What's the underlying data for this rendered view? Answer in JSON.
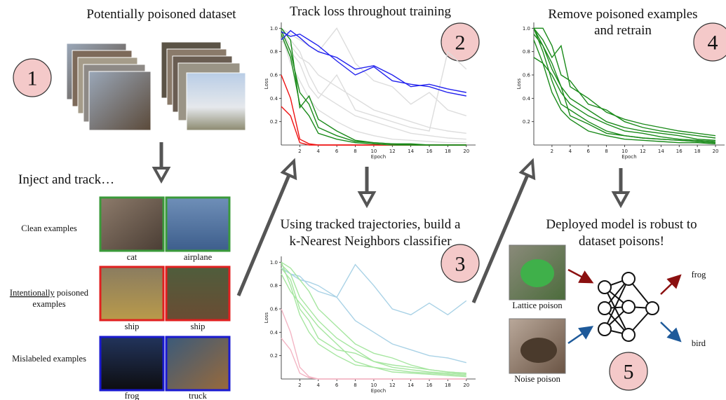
{
  "badges": [
    "1",
    "2",
    "3",
    "4",
    "5"
  ],
  "dataset": {
    "title": "Potentially poisoned dataset"
  },
  "inject": {
    "title": "Inject and track…",
    "clean": {
      "label": "Clean examples",
      "captions": [
        "cat",
        "airplane"
      ]
    },
    "poisoned": {
      "label_emphasis": "Intentionally",
      "label_rest": " poisoned",
      "label_line2": "examples",
      "captions": [
        "ship",
        "ship"
      ]
    },
    "mislabeled": {
      "label": "Mislabeled examples",
      "captions": [
        "frog",
        "truck"
      ]
    }
  },
  "track": {
    "title": "Track loss throughout training"
  },
  "knn": {
    "title_lines": [
      "Using tracked trajectories, build a",
      "k-Nearest Neighbors classifier"
    ]
  },
  "retrain": {
    "title_lines": [
      "Remove poisoned examples",
      "and retrain"
    ]
  },
  "deploy": {
    "title_lines": [
      "Deployed model is robust to",
      "dataset poisons!"
    ],
    "inputs": [
      "Lattice poison",
      "Noise poison"
    ],
    "outputs": [
      "frog",
      "bird"
    ]
  },
  "plots": {
    "training": {
      "ylabel": "Loss",
      "xlabel": "Epoch",
      "xlim": [
        0,
        21
      ],
      "ylim": [
        0,
        1.05
      ],
      "xticks": [
        2,
        4,
        6,
        8,
        10,
        12,
        14,
        16,
        18,
        20
      ],
      "yticks": [
        0.2,
        0.4,
        0.6,
        0.8,
        {
          "value": 1,
          "label": "1.0"
        }
      ],
      "x": [
        0,
        1,
        2,
        3,
        4,
        6,
        8,
        10,
        12,
        14,
        16,
        18,
        20
      ],
      "series": [
        {
          "color": "#dddddd",
          "values": [
            1.0,
            0.95,
            0.9,
            0.85,
            0.8,
            1.0,
            0.7,
            0.55,
            0.5,
            0.35,
            0.45,
            0.3,
            0.25
          ]
        },
        {
          "color": "#dddddd",
          "values": [
            0.98,
            0.85,
            0.75,
            0.7,
            0.6,
            0.5,
            0.4,
            0.3,
            0.25,
            0.2,
            0.15,
            0.12,
            0.1
          ]
        },
        {
          "color": "#dddddd",
          "values": [
            1.0,
            0.9,
            0.8,
            0.6,
            0.45,
            0.35,
            0.25,
            0.2,
            0.15,
            0.1,
            0.08,
            0.06,
            0.05
          ]
        },
        {
          "color": "#dddddd",
          "values": [
            0.9,
            0.8,
            0.7,
            0.5,
            0.4,
            0.6,
            0.3,
            0.25,
            0.2,
            0.15,
            0.12,
            0.8,
            0.65
          ]
        },
        {
          "color": "#dddddd",
          "values": [
            0.95,
            0.7,
            0.55,
            0.4,
            0.3,
            0.2,
            0.12,
            0.08,
            0.05,
            0.04,
            0.03,
            0.02,
            0.02
          ]
        },
        {
          "color": "#ee1111",
          "values": [
            0.6,
            0.4,
            0.05,
            0.01,
            0.0,
            0.0,
            0.0,
            0.0,
            0.0,
            0.0,
            0.0,
            0.0,
            0.0
          ]
        },
        {
          "color": "#ee1111",
          "values": [
            0.33,
            0.25,
            0.02,
            0.0,
            0.0,
            0.0,
            0.0,
            0.0,
            0.0,
            0.0,
            0.0,
            0.0,
            0.0
          ]
        },
        {
          "color": "#1a8a1a",
          "values": [
            1.0,
            0.9,
            0.32,
            0.42,
            0.22,
            0.12,
            0.04,
            0.02,
            0.01,
            0.01,
            0.0,
            0.0,
            0.0
          ]
        },
        {
          "color": "#1a8a1a",
          "values": [
            0.98,
            0.8,
            0.45,
            0.35,
            0.15,
            0.08,
            0.03,
            0.02,
            0.01,
            0.0,
            0.0,
            0.0,
            0.0
          ]
        },
        {
          "color": "#1a8a1a",
          "values": [
            0.95,
            0.75,
            0.35,
            0.25,
            0.1,
            0.05,
            0.02,
            0.01,
            0.0,
            0.0,
            0.0,
            0.0,
            0.0
          ]
        },
        {
          "color": "#2222ee",
          "values": [
            0.9,
            0.98,
            0.92,
            0.85,
            0.8,
            0.75,
            0.65,
            0.68,
            0.6,
            0.5,
            0.52,
            0.48,
            0.45
          ]
        },
        {
          "color": "#2222ee",
          "values": [
            0.97,
            0.93,
            0.95,
            0.9,
            0.85,
            0.72,
            0.6,
            0.67,
            0.55,
            0.52,
            0.5,
            0.45,
            0.42
          ]
        }
      ]
    },
    "knn": {
      "ylabel": "Loss",
      "xlabel": "Epoch",
      "xlim": [
        0,
        21
      ],
      "ylim": [
        0,
        1.05
      ],
      "xticks": [
        2,
        4,
        6,
        8,
        10,
        12,
        14,
        16,
        18,
        20
      ],
      "yticks": [
        0.2,
        0.4,
        0.6,
        0.8,
        {
          "value": 1,
          "label": "1.0"
        }
      ],
      "x": [
        0,
        1,
        2,
        3,
        4,
        6,
        8,
        10,
        12,
        14,
        16,
        18,
        20
      ],
      "series": [
        {
          "color": "#a9d2e6",
          "values": [
            0.95,
            0.9,
            0.85,
            0.83,
            0.8,
            0.7,
            0.98,
            0.8,
            0.6,
            0.55,
            0.65,
            0.55,
            0.67
          ]
        },
        {
          "color": "#a9d2e6",
          "values": [
            0.95,
            0.9,
            0.88,
            0.8,
            0.75,
            0.7,
            0.5,
            0.4,
            0.3,
            0.25,
            0.2,
            0.18,
            0.14
          ]
        },
        {
          "color": "#f3b5c4",
          "values": [
            0.6,
            0.4,
            0.1,
            0.02,
            0.0,
            0.0,
            0.0,
            0.0,
            0.0,
            0.0,
            0.0,
            0.0,
            0.0
          ]
        },
        {
          "color": "#f3b5c4",
          "values": [
            0.35,
            0.25,
            0.05,
            0.01,
            0.0,
            0.0,
            0.0,
            0.0,
            0.0,
            0.0,
            0.0,
            0.0,
            0.0
          ]
        },
        {
          "color": "#a6e6a0",
          "values": [
            1.0,
            0.95,
            0.85,
            0.75,
            0.6,
            0.45,
            0.3,
            0.22,
            0.18,
            0.12,
            0.08,
            0.06,
            0.05
          ]
        },
        {
          "color": "#a6e6a0",
          "values": [
            0.98,
            0.9,
            0.7,
            0.6,
            0.5,
            0.35,
            0.25,
            0.15,
            0.12,
            0.1,
            0.08,
            0.06,
            0.05
          ]
        },
        {
          "color": "#a6e6a0",
          "values": [
            0.95,
            0.85,
            0.6,
            0.5,
            0.35,
            0.25,
            0.22,
            0.15,
            0.1,
            0.08,
            0.06,
            0.05,
            0.04
          ]
        },
        {
          "color": "#a6e6a0",
          "values": [
            1.0,
            0.8,
            0.55,
            0.4,
            0.3,
            0.2,
            0.12,
            0.1,
            0.08,
            0.06,
            0.05,
            0.04,
            0.03
          ]
        },
        {
          "color": "#a6e6a0",
          "values": [
            0.9,
            0.75,
            0.65,
            0.55,
            0.45,
            0.3,
            0.15,
            0.1,
            0.06,
            0.05,
            0.04,
            0.03,
            0.02
          ]
        }
      ]
    },
    "retrain": {
      "ylabel": "Loss",
      "xlabel": "Epoch",
      "xlim": [
        0,
        21
      ],
      "ylim": [
        0,
        1.05
      ],
      "xticks": [
        2,
        4,
        6,
        8,
        10,
        12,
        14,
        16,
        18,
        20
      ],
      "yticks": [
        0.2,
        0.4,
        0.6,
        0.8,
        {
          "value": 1,
          "label": "1.0"
        }
      ],
      "x": [
        0,
        1,
        2,
        3,
        4,
        6,
        8,
        10,
        12,
        14,
        16,
        18,
        20
      ],
      "series": [
        {
          "color": "#1a8a1a",
          "values": [
            1.0,
            1.0,
            0.85,
            0.6,
            0.55,
            0.35,
            0.3,
            0.2,
            0.15,
            0.12,
            0.1,
            0.08,
            0.06
          ]
        },
        {
          "color": "#1a8a1a",
          "values": [
            1.0,
            0.9,
            0.75,
            0.85,
            0.5,
            0.4,
            0.28,
            0.22,
            0.18,
            0.15,
            0.12,
            0.1,
            0.08
          ]
        },
        {
          "color": "#1a8a1a",
          "values": [
            0.95,
            0.85,
            0.7,
            0.5,
            0.4,
            0.3,
            0.2,
            0.15,
            0.12,
            0.1,
            0.08,
            0.05,
            0.04
          ]
        },
        {
          "color": "#1a8a1a",
          "values": [
            0.75,
            0.7,
            0.6,
            0.45,
            0.35,
            0.25,
            0.18,
            0.12,
            0.1,
            0.07,
            0.05,
            0.04,
            0.03
          ]
        },
        {
          "color": "#1a8a1a",
          "values": [
            1.0,
            0.8,
            0.55,
            0.35,
            0.3,
            0.2,
            0.12,
            0.08,
            0.06,
            0.05,
            0.04,
            0.03,
            0.02
          ]
        },
        {
          "color": "#1a8a1a",
          "values": [
            0.9,
            0.7,
            0.45,
            0.3,
            0.22,
            0.12,
            0.08,
            0.05,
            0.04,
            0.03,
            0.02,
            0.02,
            0.01
          ]
        },
        {
          "color": "#1a8a1a",
          "values": [
            1.0,
            0.85,
            0.65,
            0.5,
            0.25,
            0.18,
            0.1,
            0.08,
            0.06,
            0.05,
            0.04,
            0.03,
            0.02
          ]
        }
      ]
    }
  }
}
